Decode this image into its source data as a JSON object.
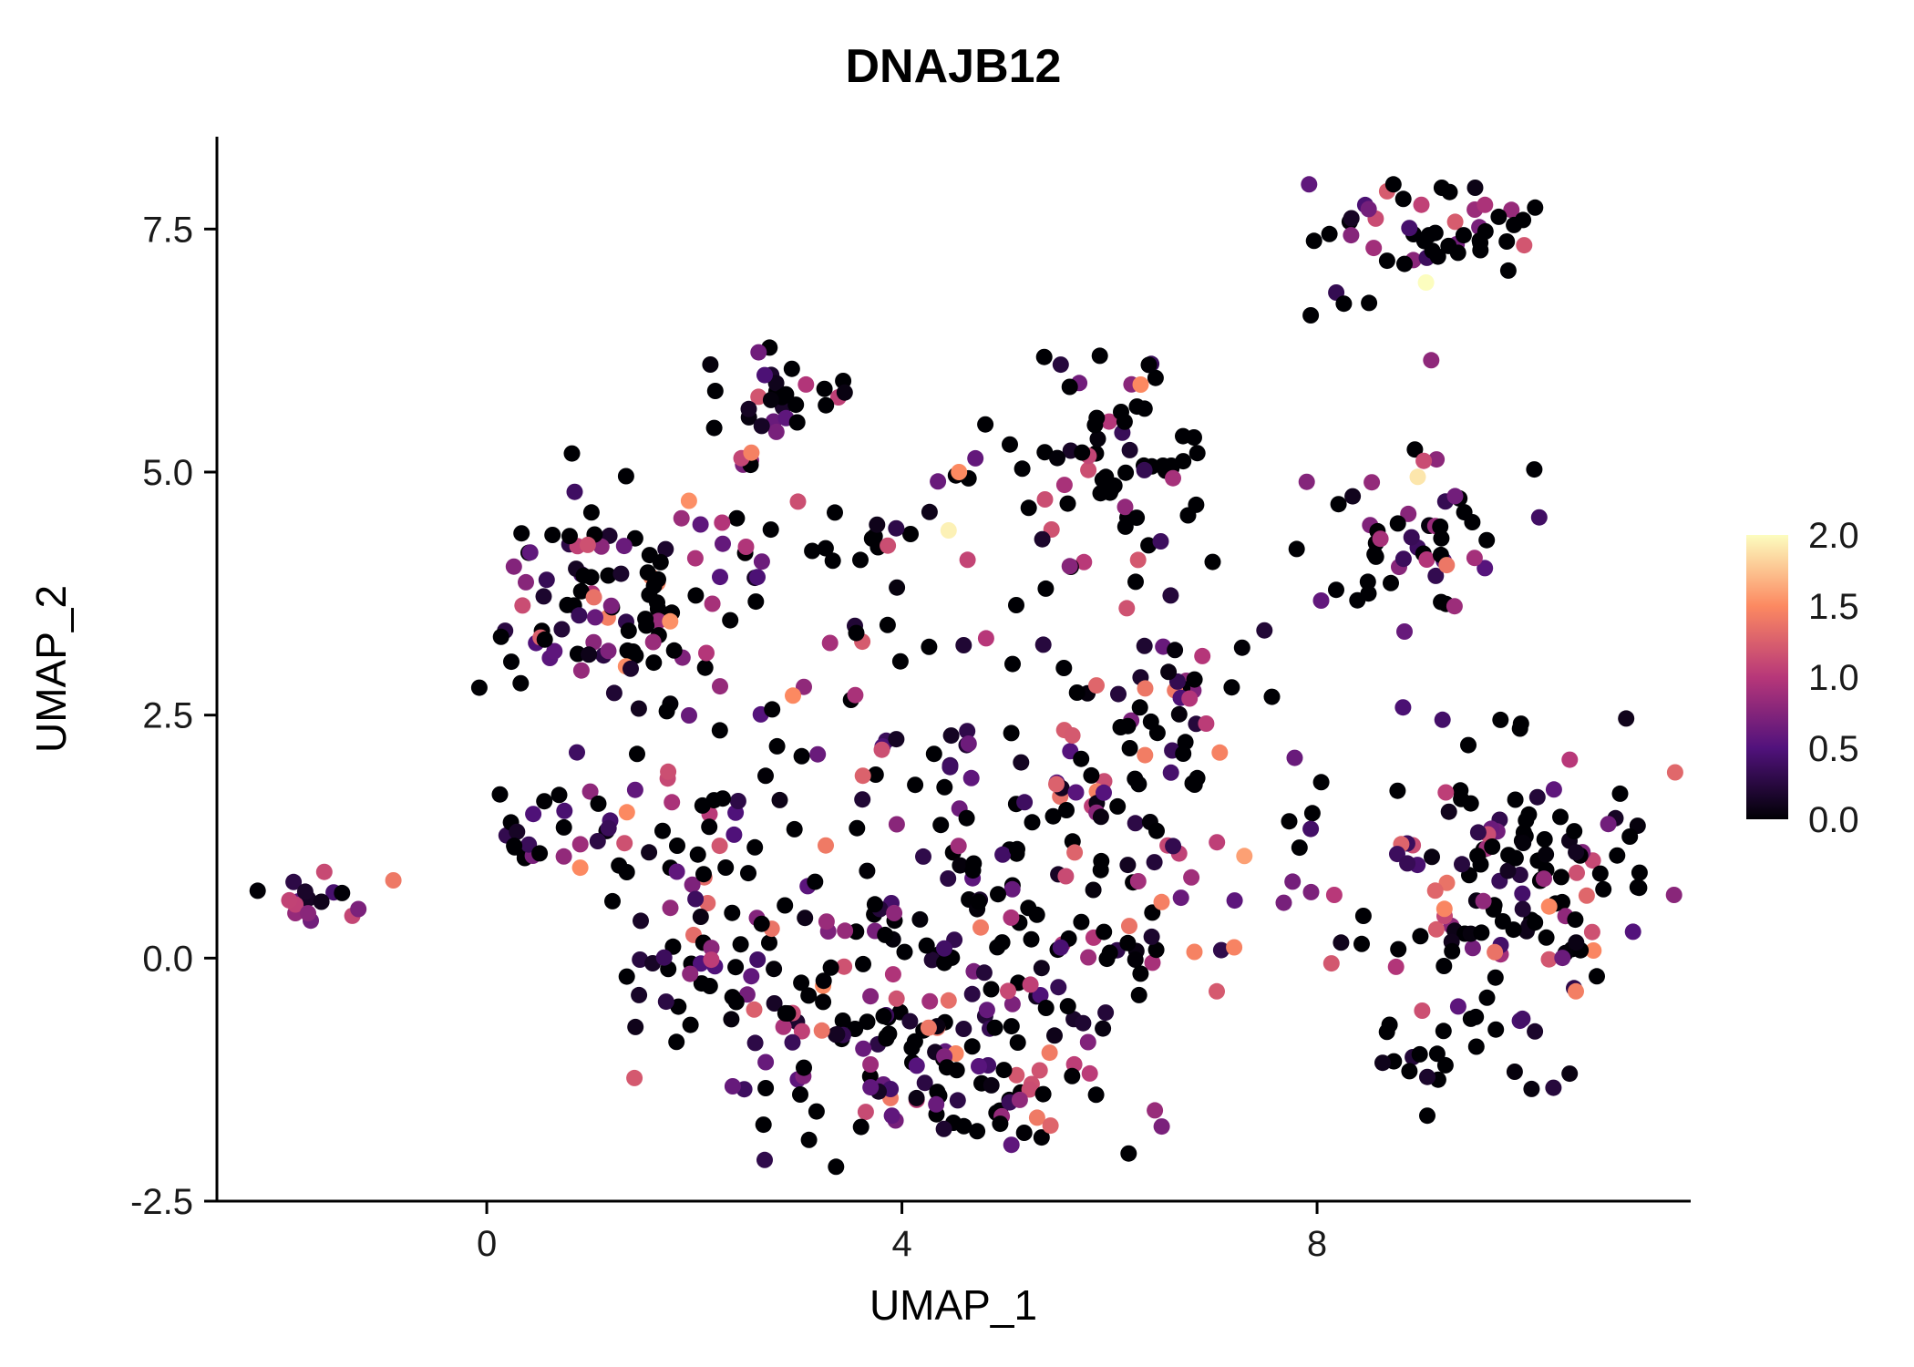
{
  "chart_data": {
    "type": "scatter",
    "title": "DNAJB12",
    "xlabel": "UMAP_1",
    "ylabel": "UMAP_2",
    "xlim": [
      -2.6,
      11.6
    ],
    "ylim": [
      -2.5,
      8.45
    ],
    "xticks": [
      0,
      4,
      8
    ],
    "xtick_labels": [
      "0",
      "4",
      "8"
    ],
    "yticks": [
      -2.5,
      0.0,
      2.5,
      5.0,
      7.5
    ],
    "ytick_labels": [
      "-2.5",
      "0.0",
      "2.5",
      "5.0",
      "7.5"
    ],
    "grid": false,
    "background": "#ffffff",
    "point_radius": 9,
    "legend": {
      "position": "right",
      "range": [
        0,
        2.0
      ],
      "ticks": [
        2.0,
        1.5,
        1.0,
        0.5,
        0.0
      ],
      "tick_labels": [
        "2.0",
        "1.5",
        "1.0",
        "0.5",
        "0.0"
      ]
    },
    "colormap": {
      "name": "magma",
      "positions": [
        0,
        0.25,
        0.5,
        0.75,
        1
      ],
      "stops": [
        "#000004",
        "#51127c",
        "#b73779",
        "#fc8961",
        "#fcfdbf"
      ]
    },
    "seed": 42,
    "clusters": [
      {
        "name": "left-isolated-blob",
        "cx": -1.65,
        "cy": 0.62,
        "sx": 0.17,
        "sy": 0.13,
        "n": 16,
        "p0": 0.1,
        "vmax": 1.25
      },
      {
        "name": "upper-left",
        "cx": 1.15,
        "cy": 3.75,
        "sx": 0.55,
        "sy": 0.55,
        "n": 95,
        "p0": 0.45,
        "vmax": 1.55
      },
      {
        "name": "left-arm",
        "cx": 0.55,
        "cy": 1.3,
        "sx": 0.35,
        "sy": 0.25,
        "n": 22,
        "p0": 0.5,
        "vmax": 1.0
      },
      {
        "name": "top-small",
        "cx": 2.85,
        "cy": 5.85,
        "sx": 0.3,
        "sy": 0.22,
        "n": 26,
        "p0": 0.5,
        "vmax": 1.2
      },
      {
        "name": "top-small-tail",
        "cx": 2.55,
        "cy": 5.3,
        "sx": 0.15,
        "sy": 0.2,
        "n": 6,
        "p0": 0.3,
        "vmax": 1.5
      },
      {
        "name": "top-middle",
        "cx": 6.0,
        "cy": 5.1,
        "sx": 0.45,
        "sy": 0.65,
        "n": 70,
        "p0": 0.6,
        "vmax": 1.2
      },
      {
        "name": "top-right",
        "cx": 8.95,
        "cy": 7.45,
        "sx": 0.55,
        "sy": 0.26,
        "n": 48,
        "p0": 0.55,
        "vmax": 1.3
      },
      {
        "name": "top-right-stragglers",
        "cx": 8.1,
        "cy": 6.9,
        "sx": 0.25,
        "sy": 0.3,
        "n": 5,
        "p0": 0.5,
        "vmax": 1.0
      },
      {
        "name": "right-upper",
        "cx": 8.85,
        "cy": 4.3,
        "sx": 0.45,
        "sy": 0.42,
        "n": 50,
        "p0": 0.5,
        "vmax": 1.4
      },
      {
        "name": "right-lower",
        "cx": 9.85,
        "cy": 0.65,
        "sx": 0.75,
        "sy": 0.9,
        "n": 145,
        "p0": 0.45,
        "vmax": 1.5
      },
      {
        "name": "right-lower-tail",
        "cx": 9.0,
        "cy": -0.9,
        "sx": 0.3,
        "sy": 0.35,
        "n": 12,
        "p0": 0.5,
        "vmax": 1.3
      },
      {
        "name": "center-west",
        "cx": 2.0,
        "cy": 0.7,
        "sx": 0.55,
        "sy": 0.85,
        "n": 70,
        "p0": 0.4,
        "vmax": 1.5
      },
      {
        "name": "center-southwest",
        "cx": 3.3,
        "cy": -0.4,
        "sx": 0.75,
        "sy": 0.7,
        "n": 75,
        "p0": 0.45,
        "vmax": 1.5
      },
      {
        "name": "center-south",
        "cx": 4.8,
        "cy": -0.8,
        "sx": 0.85,
        "sy": 0.6,
        "n": 80,
        "p0": 0.45,
        "vmax": 1.5
      },
      {
        "name": "center-east",
        "cx": 5.5,
        "cy": 0.6,
        "sx": 0.75,
        "sy": 0.8,
        "n": 80,
        "p0": 0.4,
        "vmax": 1.5
      },
      {
        "name": "center-north",
        "cx": 4.3,
        "cy": 1.7,
        "sx": 0.9,
        "sy": 0.55,
        "n": 50,
        "p0": 0.45,
        "vmax": 1.5
      },
      {
        "name": "center-northeast",
        "cx": 6.3,
        "cy": 2.1,
        "sx": 0.5,
        "sy": 0.6,
        "n": 40,
        "p0": 0.5,
        "vmax": 1.5
      },
      {
        "name": "mid-band",
        "cx": 3.9,
        "cy": 4.25,
        "sx": 0.8,
        "sy": 0.18,
        "n": 20,
        "p0": 0.55,
        "vmax": 1.3
      },
      {
        "name": "south-tail",
        "cx": 4.9,
        "cy": -1.6,
        "sx": 0.6,
        "sy": 0.28,
        "n": 24,
        "p0": 0.5,
        "vmax": 1.4
      },
      {
        "name": "mid-sparse",
        "cx": 4.0,
        "cy": 3.3,
        "sx": 1.1,
        "sy": 0.3,
        "n": 20,
        "p0": 0.55,
        "vmax": 1.3
      },
      {
        "name": "east-connector",
        "cx": 7.0,
        "cy": 2.9,
        "sx": 0.3,
        "sy": 0.4,
        "n": 13,
        "p0": 0.5,
        "vmax": 1.4
      },
      {
        "name": "east-bridge",
        "cx": 7.9,
        "cy": 0.9,
        "sx": 0.3,
        "sy": 0.55,
        "n": 12,
        "p0": 0.5,
        "vmax": 1.3
      },
      {
        "name": "northwest-bridge",
        "cx": 2.35,
        "cy": 4.4,
        "sx": 0.25,
        "sy": 0.15,
        "n": 6,
        "p0": 0.5,
        "vmax": 1.0
      },
      {
        "name": "north-sparse",
        "cx": 4.4,
        "cy": 5.05,
        "sx": 0.2,
        "sy": 0.15,
        "n": 4,
        "p0": 0.6,
        "vmax": 0.8
      }
    ],
    "highlight_points": [
      [
        -0.9,
        0.8,
        1.4
      ],
      [
        9.05,
        6.95,
        2.0
      ],
      [
        4.45,
        4.4,
        1.95
      ],
      [
        8.97,
        4.95,
        1.9
      ],
      [
        4.55,
        5.0,
        1.5
      ],
      [
        2.55,
        5.2,
        1.45
      ],
      [
        6.3,
        5.9,
        1.5
      ],
      [
        7.3,
        1.05,
        1.6
      ],
      [
        9.1,
        6.15,
        0.8
      ],
      [
        7.9,
        4.9,
        0.75
      ],
      [
        2.95,
        2.7,
        1.5
      ],
      [
        1.35,
        1.5,
        1.5
      ],
      [
        0.9,
        0.93,
        1.5
      ]
    ]
  }
}
